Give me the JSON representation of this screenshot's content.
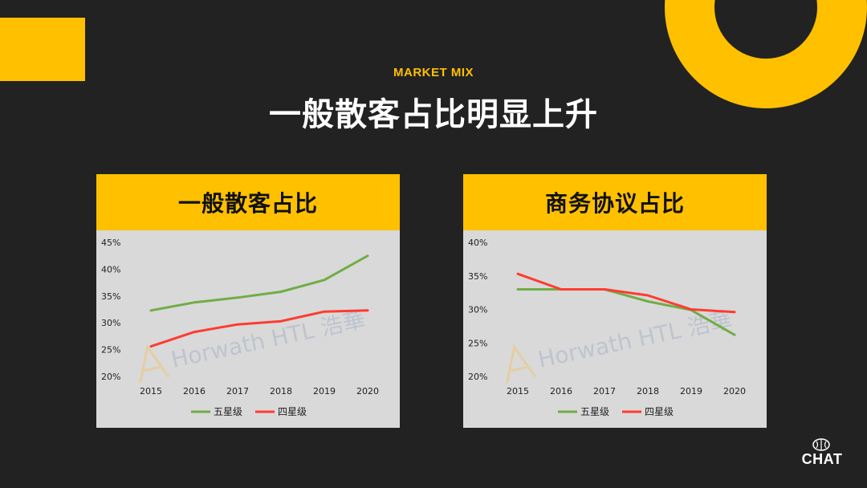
{
  "header": {
    "eyebrow": "MARKET MIX",
    "title": "一般散客占比明显上升"
  },
  "colors": {
    "accent": "#FFC000",
    "background": "#222222",
    "panel": "#D9D9D9",
    "series_five_star": "#70AD47",
    "series_four_star": "#FF3B30"
  },
  "watermark": "Horwath HTL 浩華",
  "logo": {
    "text": "CHAT"
  },
  "chart_data": [
    {
      "type": "line",
      "title": "一般散客占比",
      "categories": [
        "2015",
        "2016",
        "2017",
        "2018",
        "2019",
        "2020"
      ],
      "series": [
        {
          "name": "五星级",
          "values": [
            32.3,
            33.8,
            34.7,
            35.8,
            38.0,
            42.5
          ]
        },
        {
          "name": "四星级",
          "values": [
            25.6,
            28.3,
            29.7,
            30.3,
            32.1,
            32.3
          ]
        }
      ],
      "yticks": [
        "20%",
        "25%",
        "30%",
        "35%",
        "40%",
        "45%"
      ],
      "ylim": [
        20,
        45
      ],
      "legend": "bottom",
      "grid": false
    },
    {
      "type": "line",
      "title": "商务协议占比",
      "categories": [
        "2015",
        "2016",
        "2017",
        "2018",
        "2019",
        "2020"
      ],
      "series": [
        {
          "name": "五星级",
          "values": [
            33.0,
            33.0,
            33.0,
            31.2,
            29.9,
            26.2
          ]
        },
        {
          "name": "四星级",
          "values": [
            35.3,
            33.0,
            33.0,
            32.1,
            30.0,
            29.6
          ]
        }
      ],
      "yticks": [
        "20%",
        "25%",
        "30%",
        "35%",
        "40%"
      ],
      "ylim": [
        20,
        40
      ],
      "legend": "bottom",
      "grid": false
    }
  ]
}
